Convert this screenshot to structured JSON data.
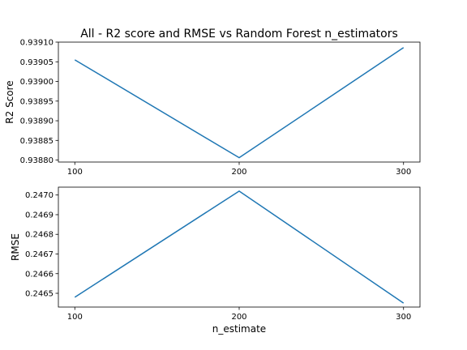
{
  "chart_data": {
    "title": "All - R2 score and RMSE vs Random Forest n_estimators",
    "xlabel": "n_estimate",
    "line_color": "#1f77b4",
    "subplots": [
      {
        "type": "line",
        "ylabel": "R2 Score",
        "x": [
          100,
          200,
          300
        ],
        "values": [
          0.939055,
          0.938806,
          0.939086
        ],
        "ylim": [
          0.938795,
          0.9391
        ],
        "xticks": [
          "100",
          "200",
          "300"
        ],
        "yticks": [
          "0.93880",
          "0.93885",
          "0.93890",
          "0.93895",
          "0.93900",
          "0.93905",
          "0.93910"
        ],
        "ytick_values": [
          0.9388,
          0.93885,
          0.9389,
          0.93895,
          0.939,
          0.93905,
          0.9391
        ]
      },
      {
        "type": "line",
        "ylabel": "RMSE",
        "x": [
          100,
          200,
          300
        ],
        "values": [
          0.24648,
          0.24702,
          0.24645
        ],
        "ylim": [
          0.24643,
          0.24704
        ],
        "xticks": [
          "100",
          "200",
          "300"
        ],
        "yticks": [
          "0.2465",
          "0.2466",
          "0.2467",
          "0.2468",
          "0.2469",
          "0.2470"
        ],
        "ytick_values": [
          0.2465,
          0.2466,
          0.2467,
          0.2468,
          0.2469,
          0.247
        ]
      }
    ]
  }
}
